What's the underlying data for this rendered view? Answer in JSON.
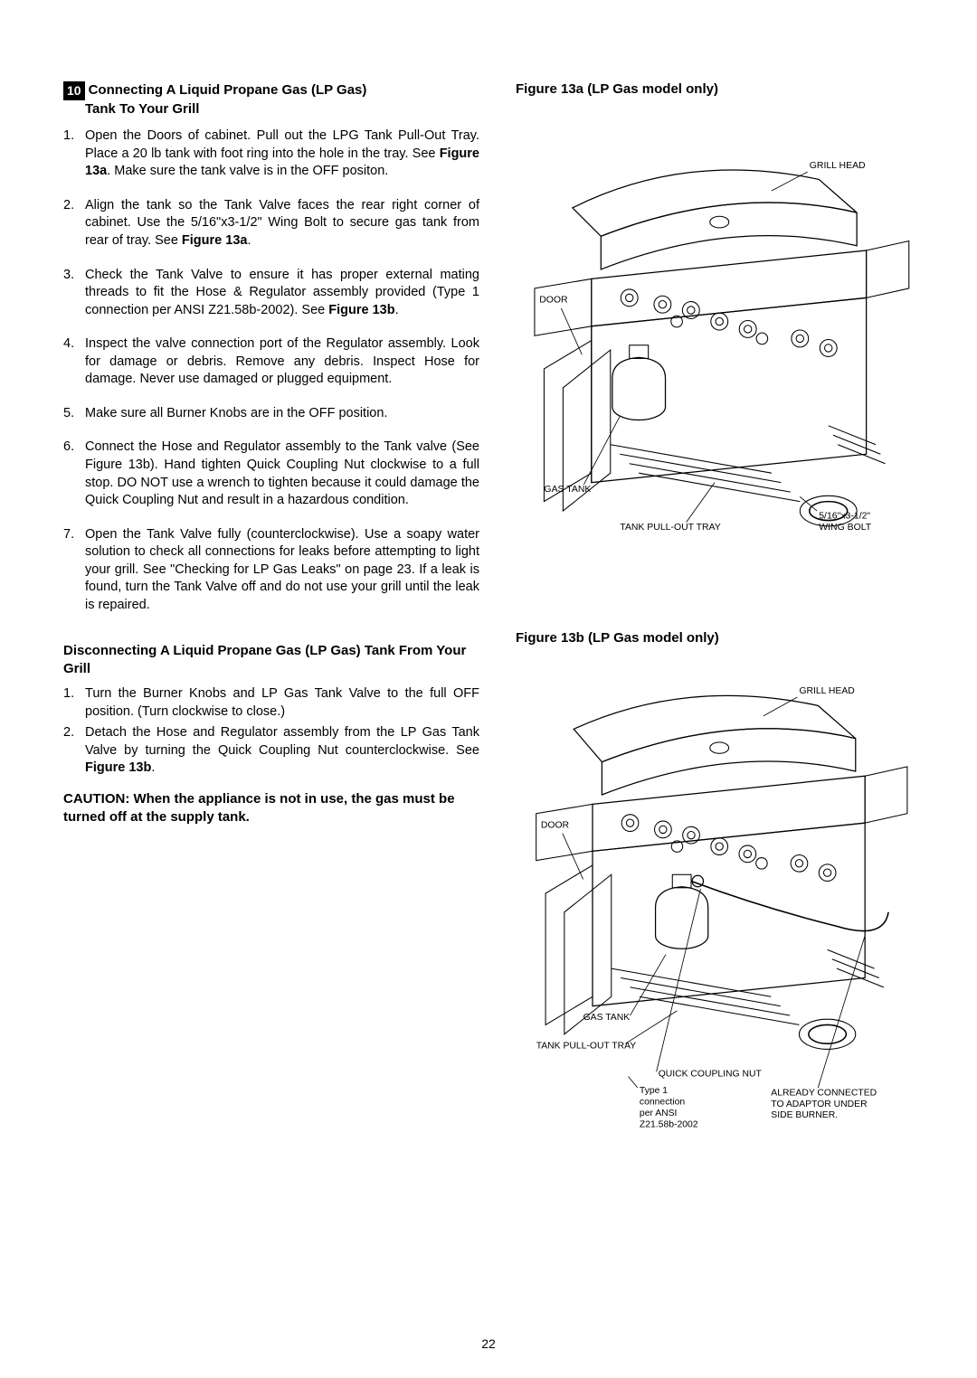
{
  "step_number": "10",
  "left": {
    "title_line1": "Connecting A Liquid Propane Gas (LP Gas)",
    "title_line2": "Tank To Your Grill",
    "connecting_steps": [
      "Open the Doors of cabinet. Pull out the LPG Tank Pull-Out Tray. Place a 20 lb tank with foot ring into the hole in the tray. See <b>Figure 13a</b>. Make sure the tank valve is in the OFF positon.",
      "Align the tank so the Tank Valve faces the rear right corner of cabinet.  Use the 5/16\"x3-1/2\" Wing Bolt to secure gas tank from rear of tray. See <b>Figure 13a</b>.",
      "Check the Tank Valve to ensure it has proper external mating threads to fit the Hose & Regulator assembly provided  (Type 1 connection per ANSI Z21.58b-2002). See <b>Figure 13b</b>.",
      "Inspect the valve connection port of the Regulator assembly. Look for damage or debris. Remove any debris. Inspect Hose for damage. Never use damaged or plugged equipment.",
      "Make sure all Burner Knobs are in the OFF position.",
      "Connect the Hose and Regulator assembly to the Tank valve (See Figure 13b).  Hand tighten Quick Coupling Nut clockwise to a full stop. DO NOT use a wrench to tighten because it could damage the Quick Coupling Nut and result in a hazardous condition.",
      "Open the Tank Valve fully (counterclockwise). Use a soapy water solution to check all connections for leaks before attempting to light your grill. See \"Checking for LP Gas Leaks\" on page 23. If a leak is found, turn the Tank Valve off and do not use your grill until the leak is repaired."
    ],
    "disconnect_title": "Disconnecting A Liquid Propane Gas (LP Gas) Tank From Your Grill",
    "disconnect_steps": [
      "Turn the Burner Knobs and LP Gas Tank Valve to the full OFF position. (Turn clockwise to close.)",
      "Detach the Hose and Regulator assembly from the LP Gas Tank Valve by turning the Quick Coupling Nut counterclockwise. See <b>Figure 13b</b>."
    ],
    "caution": "CAUTION: When the appliance is not in use, the gas must be turned off at the supply tank."
  },
  "figure_a": {
    "title": "Figure 13a (LP Gas model only)",
    "labels": {
      "grill_head": "GRILL HEAD",
      "door": "DOOR",
      "gas_tank": "GAS TANK",
      "tank_tray": "TANK PULL-OUT TRAY",
      "wing_bolt_size": "5/16\"x3-1/2\"",
      "wing_bolt": "WING BOLT"
    }
  },
  "figure_b": {
    "title": "Figure 13b (LP Gas model only)",
    "labels": {
      "grill_head": "GRILL HEAD",
      "door": "DOOR",
      "gas_tank": "GAS TANK",
      "tank_tray": "TANK PULL-OUT TRAY",
      "qcn": "QUICK COUPLING NUT",
      "type1_l1": "Type 1",
      "type1_l2": "connection",
      "type1_l3": "per ANSI",
      "type1_l4": "Z21.58b-2002",
      "already_l1": "ALREADY CONNECTED",
      "already_l2": "TO ADAPTOR UNDER",
      "already_l3": "SIDE BURNER."
    }
  },
  "page_number": "22"
}
